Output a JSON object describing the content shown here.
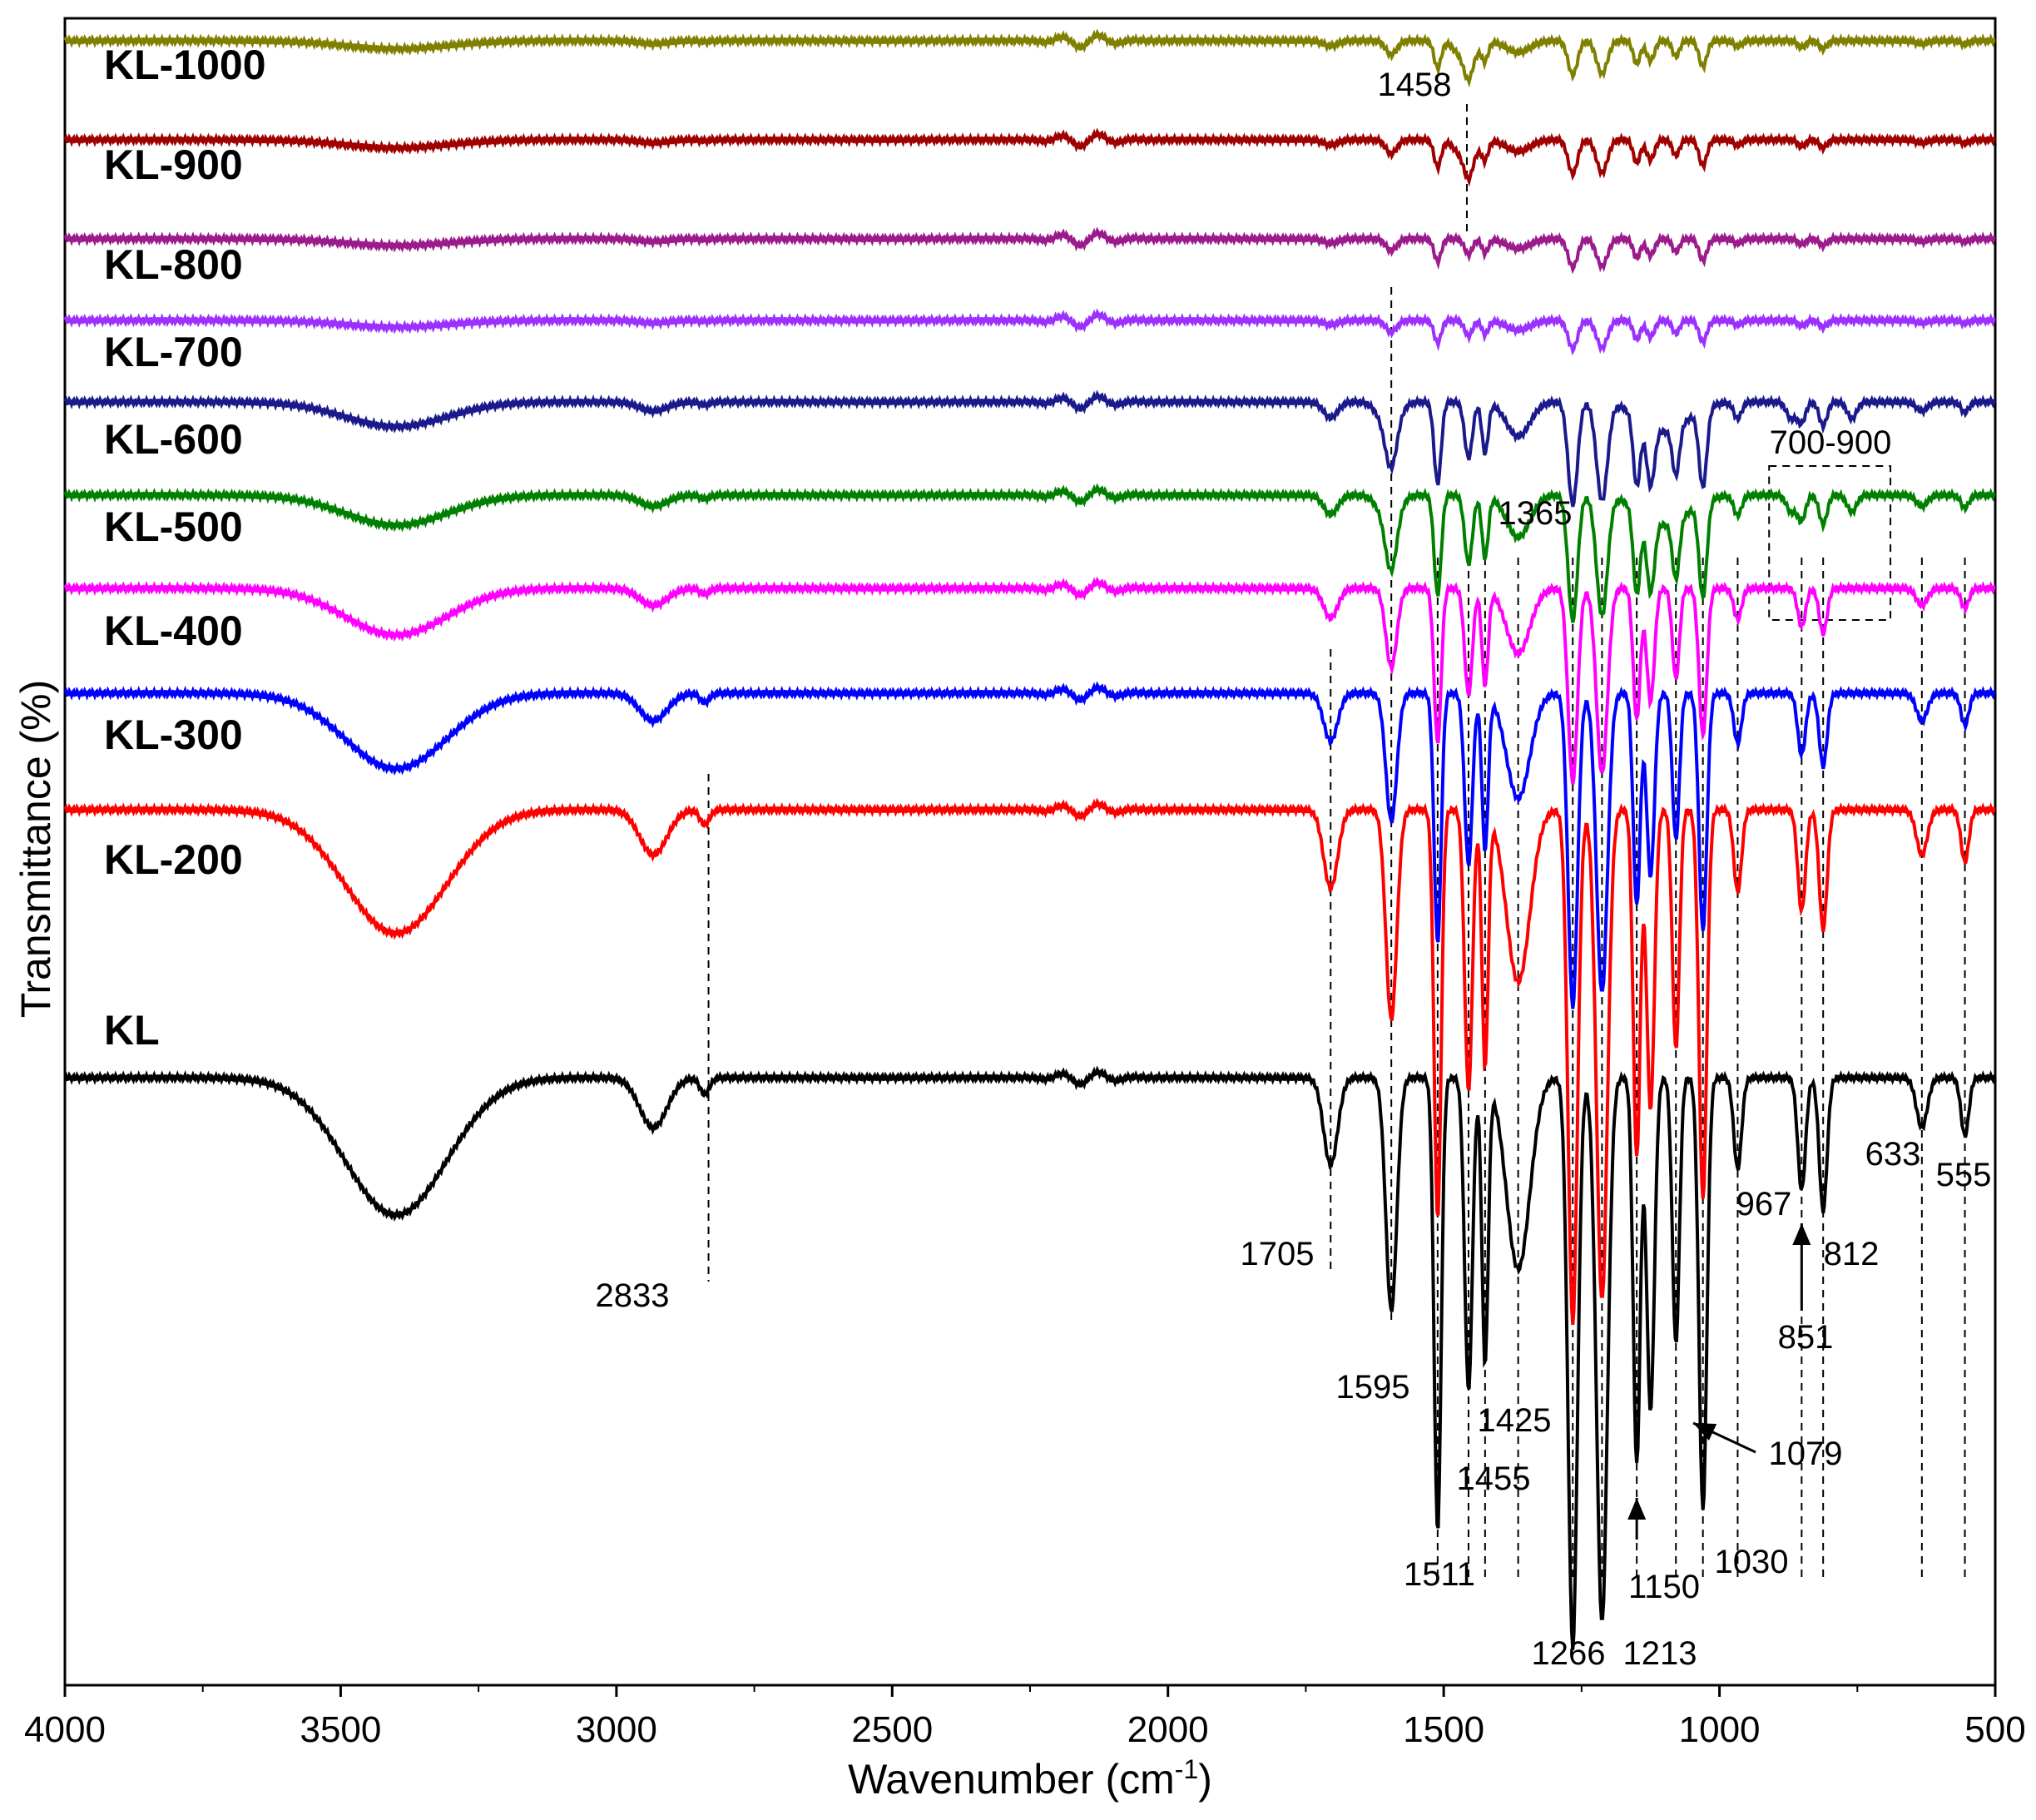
{
  "chart_data": {
    "type": "line",
    "title": "",
    "xlabel": "Wavenumber (cm",
    "xlabel_sup": "-1",
    "xlabel_end": ")",
    "ylabel": "Transmittance (%)",
    "xlim": [
      4000,
      500
    ],
    "x_reversed": true,
    "xticks": [
      4000,
      3500,
      3000,
      2500,
      2000,
      1500,
      1000,
      500
    ],
    "xtick_labels": [
      "4000",
      "3500",
      "3000",
      "2500",
      "2000",
      "1500",
      "1000",
      "500"
    ],
    "grid": false,
    "legend": "inline labels, top-left of each trace",
    "series": [
      {
        "name": "KL-1000",
        "color": "#808000",
        "offset": 8.9,
        "scale": 0.06
      },
      {
        "name": "KL-900",
        "color": "#a00000",
        "offset": 8.05,
        "scale": 0.06
      },
      {
        "name": "KL-800",
        "color": "#9b1a8c",
        "offset": 7.2,
        "scale": 0.05
      },
      {
        "name": "KL-700",
        "color": "#9b30ff",
        "offset": 6.5,
        "scale": 0.05
      },
      {
        "name": "KL-600",
        "color": "#1a1a8c",
        "offset": 5.8,
        "scale": 0.18
      },
      {
        "name": "KL-500",
        "color": "#008000",
        "offset": 5.0,
        "scale": 0.22
      },
      {
        "name": "KL-400",
        "color": "#ff00ff",
        "offset": 4.2,
        "scale": 0.34
      },
      {
        "name": "KL-300",
        "color": "#0000ff",
        "offset": 3.3,
        "scale": 0.55
      },
      {
        "name": "KL-200",
        "color": "#ff0000",
        "offset": 2.3,
        "scale": 0.9
      },
      {
        "name": "KL",
        "color": "#000000",
        "offset": 0.0,
        "scale": 1.0
      }
    ],
    "peak_labels": [
      "2833",
      "1705",
      "1595",
      "1511",
      "1455",
      "1425",
      "1365",
      "1266",
      "1213",
      "1150",
      "1079",
      "1030",
      "967",
      "851",
      "812",
      "633",
      "555",
      "1458",
      "700-900"
    ],
    "peak_positions": [
      2833,
      1705,
      1595,
      1511,
      1455,
      1425,
      1365,
      1266,
      1213,
      1150,
      1079,
      1030,
      967,
      851,
      812,
      633,
      555,
      1458
    ],
    "annotation_box": "700-900"
  }
}
